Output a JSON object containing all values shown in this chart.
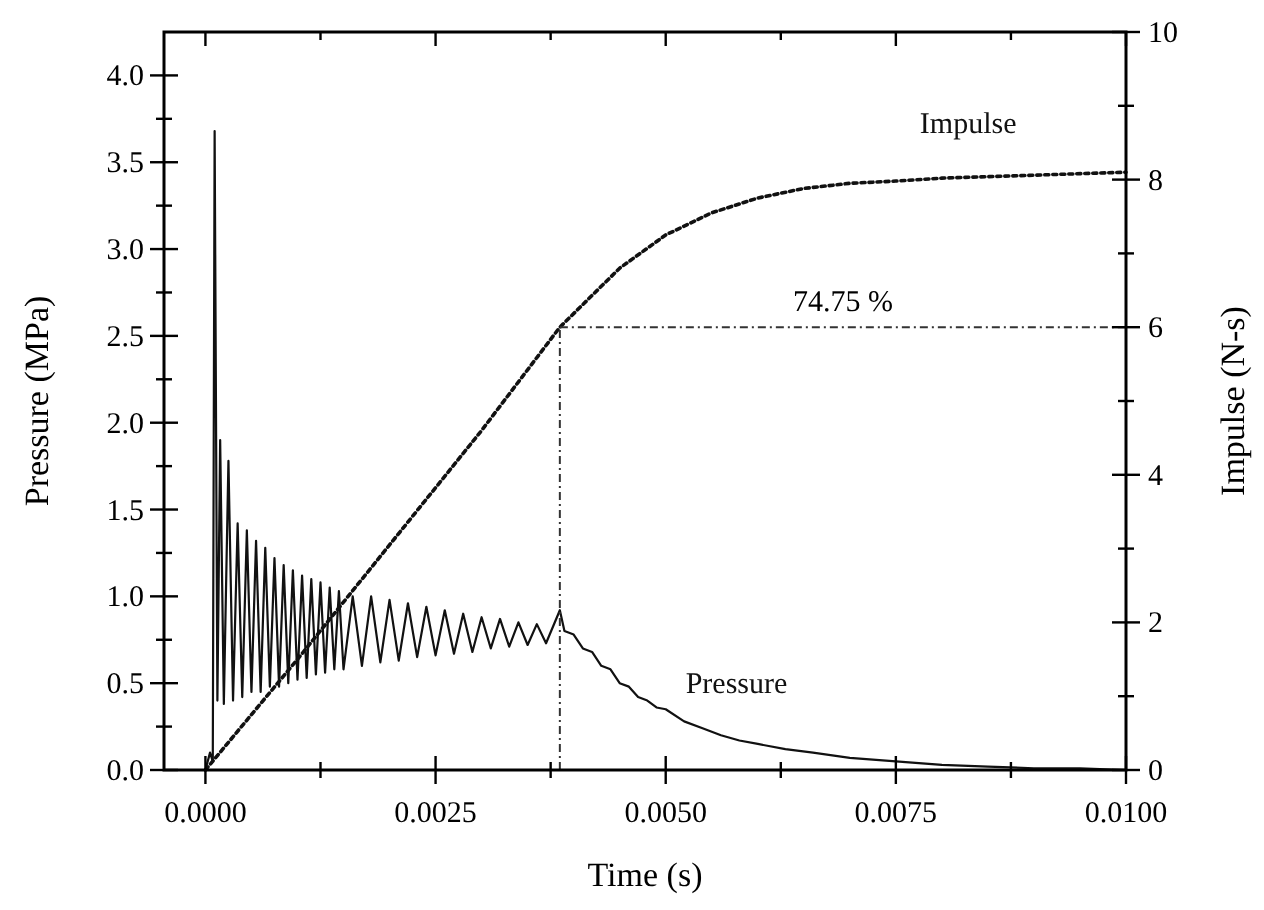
{
  "chart_data": {
    "type": "line",
    "xlabel": "Time (s)",
    "ylabel": "Pressure (MPa)",
    "y2label": "Impulse (N-s)",
    "xlim": [
      -0.00045,
      0.01
    ],
    "ylim": [
      0,
      4.25
    ],
    "y2lim": [
      0,
      10
    ],
    "xticks": [
      {
        "value": 0,
        "label": "0.0000"
      },
      {
        "value": 0.00125,
        "label": null
      },
      {
        "value": 0.0025,
        "label": "0.0025"
      },
      {
        "value": 0.00375,
        "label": null
      },
      {
        "value": 0.005,
        "label": "0.0050"
      },
      {
        "value": 0.00625,
        "label": null
      },
      {
        "value": 0.0075,
        "label": "0.0075"
      },
      {
        "value": 0.00875,
        "label": null
      },
      {
        "value": 0.01,
        "label": "0.0100"
      }
    ],
    "yticks": [
      {
        "value": 0,
        "label": "0.0"
      },
      {
        "value": 0.25,
        "label": null
      },
      {
        "value": 0.5,
        "label": "0.5"
      },
      {
        "value": 0.75,
        "label": null
      },
      {
        "value": 1,
        "label": "1.0"
      },
      {
        "value": 1.25,
        "label": null
      },
      {
        "value": 1.5,
        "label": "1.5"
      },
      {
        "value": 1.75,
        "label": null
      },
      {
        "value": 2,
        "label": "2.0"
      },
      {
        "value": 2.25,
        "label": null
      },
      {
        "value": 2.5,
        "label": "2.5"
      },
      {
        "value": 2.75,
        "label": null
      },
      {
        "value": 3,
        "label": "3.0"
      },
      {
        "value": 3.25,
        "label": null
      },
      {
        "value": 3.5,
        "label": "3.5"
      },
      {
        "value": 3.75,
        "label": null
      },
      {
        "value": 4,
        "label": "4.0"
      }
    ],
    "y2ticks": [
      0,
      {
        "value": 1,
        "label": null
      },
      2,
      {
        "value": 3,
        "label": null
      },
      4,
      {
        "value": 5,
        "label": null
      },
      6,
      {
        "value": 7,
        "label": null
      },
      8,
      {
        "value": 9,
        "label": null
      },
      10
    ],
    "series": [
      {
        "name": "Pressure",
        "color": "#111111",
        "line_style": "solid",
        "x": [
          0,
          5e-05,
          8e-05,
          0.0001,
          0.00013,
          0.00016,
          0.0002,
          0.00025,
          0.0003,
          0.00035,
          0.0004,
          0.00045,
          0.0005,
          0.00055,
          0.0006,
          0.00065,
          0.0007,
          0.00075,
          0.0008,
          0.00085,
          0.0009,
          0.00095,
          0.001,
          0.00105,
          0.0011,
          0.00115,
          0.0012,
          0.00125,
          0.0013,
          0.00135,
          0.0014,
          0.00145,
          0.0015,
          0.0016,
          0.0017,
          0.0018,
          0.0019,
          0.002,
          0.0021,
          0.0022,
          0.0023,
          0.0024,
          0.0025,
          0.0026,
          0.0027,
          0.0028,
          0.0029,
          0.003,
          0.0031,
          0.0032,
          0.0033,
          0.0034,
          0.0035,
          0.0036,
          0.0037,
          0.00385,
          0.0039,
          0.004,
          0.0041,
          0.0042,
          0.0043,
          0.0044,
          0.0045,
          0.0046,
          0.0047,
          0.0048,
          0.0049,
          0.005,
          0.0052,
          0.0054,
          0.0056,
          0.0058,
          0.006,
          0.0063,
          0.0066,
          0.007,
          0.0075,
          0.008,
          0.0085,
          0.009,
          0.0095,
          0.01
        ],
        "values": [
          0,
          0.1,
          0.05,
          3.68,
          0.4,
          1.9,
          0.38,
          1.78,
          0.4,
          1.42,
          0.42,
          1.38,
          0.45,
          1.32,
          0.45,
          1.28,
          0.48,
          1.22,
          0.48,
          1.18,
          0.5,
          1.15,
          0.52,
          1.12,
          0.53,
          1.1,
          0.55,
          1.08,
          0.56,
          1.05,
          0.58,
          1.03,
          0.58,
          1,
          0.6,
          1,
          0.62,
          0.98,
          0.63,
          0.96,
          0.65,
          0.94,
          0.66,
          0.92,
          0.67,
          0.9,
          0.68,
          0.88,
          0.7,
          0.87,
          0.71,
          0.85,
          0.72,
          0.84,
          0.73,
          0.92,
          0.8,
          0.78,
          0.7,
          0.68,
          0.6,
          0.58,
          0.5,
          0.48,
          0.42,
          0.4,
          0.36,
          0.35,
          0.28,
          0.24,
          0.2,
          0.17,
          0.15,
          0.12,
          0.1,
          0.07,
          0.05,
          0.03,
          0.02,
          0.01,
          0.01,
          0
        ]
      },
      {
        "name": "Impulse",
        "color": "#111111",
        "axis": "y2",
        "line_style": "dotted",
        "x": [
          0,
          0.001,
          0.002,
          0.003,
          0.00385,
          0.0045,
          0.005,
          0.0055,
          0.006,
          0.0065,
          0.007,
          0.0075,
          0.008,
          0.009,
          0.01
        ],
        "values": [
          0,
          1.5,
          3.05,
          4.6,
          6,
          6.8,
          7.25,
          7.55,
          7.75,
          7.88,
          7.95,
          7.98,
          8.02,
          8.06,
          8.1
        ]
      }
    ],
    "ref_lines": [
      {
        "axis": "x",
        "value": 0.00385,
        "label": null
      },
      {
        "axis": "y2",
        "value": 6,
        "label": null
      }
    ],
    "annotations": [
      "74.75 %"
    ]
  }
}
